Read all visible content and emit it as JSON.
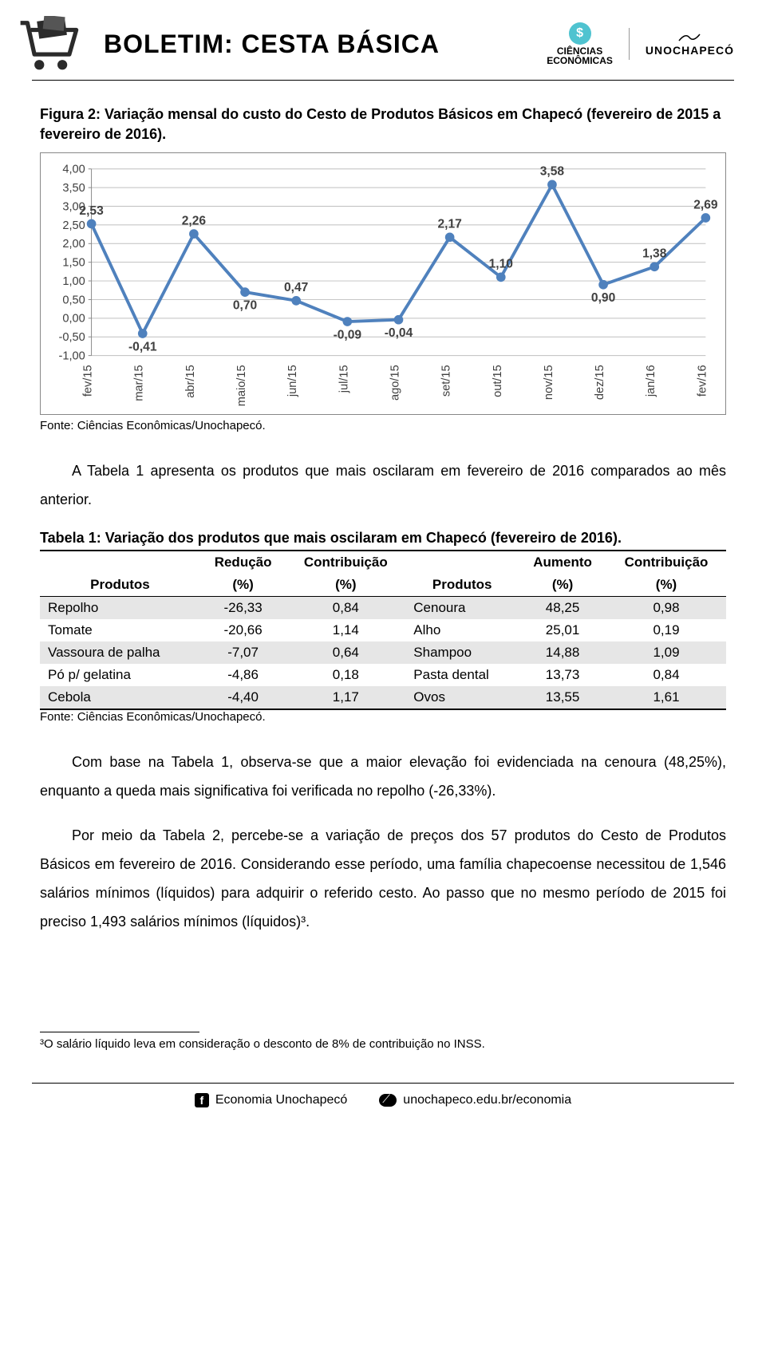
{
  "header": {
    "title": "BOLETIM: CESTA BÁSICA",
    "logo_ce_line1": "CIÊNCIAS",
    "logo_ce_line2": "ECONÔMICAS",
    "logo_ce_badge": "$",
    "logo_uno": "UNOCHAPECÓ"
  },
  "figure2": {
    "title": "Figura 2: Variação mensal do custo do Cesto de Produtos Básicos em Chapecó (fevereiro de 2015 a fevereiro de 2016).",
    "source": "Fonte: Ciências Econômicas/Unochapecó.",
    "chart": {
      "type": "line",
      "line_color": "#4f81bd",
      "line_width": 4,
      "marker_color": "#4f81bd",
      "marker_radius": 6,
      "grid_color": "#bfbfbf",
      "axis_color": "#888888",
      "label_color": "#404040",
      "label_fontsize": 16,
      "tick_fontsize": 15,
      "ylim": [
        -1.0,
        4.0
      ],
      "ytick_step": 0.5,
      "yticks": [
        "4,00",
        "3,50",
        "3,00",
        "2,50",
        "2,00",
        "1,50",
        "1,00",
        "0,50",
        "0,00",
        "-0,50",
        "-1,00"
      ],
      "categories": [
        "fev/15",
        "mar/15",
        "abr/15",
        "maio/15",
        "jun/15",
        "jul/15",
        "ago/15",
        "set/15",
        "out/15",
        "nov/15",
        "dez/15",
        "jan/16",
        "fev/16"
      ],
      "values": [
        2.53,
        -0.41,
        2.26,
        0.7,
        0.47,
        -0.09,
        -0.04,
        2.17,
        1.1,
        3.58,
        0.9,
        1.38,
        2.69
      ],
      "value_labels": [
        "2,53",
        "-0,41",
        "2,26",
        "0,70",
        "0,47",
        "-0,09",
        "-0,04",
        "2,17",
        "1,10",
        "3,58",
        "0,90",
        "1,38",
        "2,69"
      ],
      "label_pos": [
        "above",
        "below",
        "above",
        "below",
        "above",
        "below",
        "below",
        "above",
        "above",
        "above",
        "below",
        "above",
        "above"
      ]
    }
  },
  "para1": "A Tabela 1 apresenta os produtos que mais oscilaram em fevereiro de 2016 comparados ao mês anterior.",
  "table1": {
    "title": "Tabela 1: Variação dos produtos que mais oscilaram em Chapecó (fevereiro de 2016).",
    "headers_top": [
      "",
      "Redução",
      "Contribuição",
      "",
      "Aumento",
      "Contribuição"
    ],
    "headers_bot": [
      "Produtos",
      "(%)",
      "(%)",
      "Produtos",
      "(%)",
      "(%)"
    ],
    "rows": [
      [
        "Repolho",
        "-26,33",
        "0,84",
        "Cenoura",
        "48,25",
        "0,98"
      ],
      [
        "Tomate",
        "-20,66",
        "1,14",
        "Alho",
        "25,01",
        "0,19"
      ],
      [
        "Vassoura de palha",
        "-7,07",
        "0,64",
        "Shampoo",
        "14,88",
        "1,09"
      ],
      [
        "Pó p/ gelatina",
        "-4,86",
        "0,18",
        "Pasta dental",
        "13,73",
        "0,84"
      ],
      [
        "Cebola",
        "-4,40",
        "1,17",
        "Ovos",
        "13,55",
        "1,61"
      ]
    ],
    "source": "Fonte: Ciências Econômicas/Unochapecó."
  },
  "para2": "Com base na Tabela 1, observa-se que a maior elevação foi evidenciada na cenoura (48,25%), enquanto a queda mais significativa foi verificada no repolho (-26,33%).",
  "para3": "Por meio da Tabela 2, percebe-se a variação de preços dos 57 produtos do Cesto de Produtos Básicos em fevereiro de 2016. Considerando esse período, uma família chapecoense necessitou de 1,546 salários mínimos (líquidos) para adquirir o referido cesto. Ao passo que no mesmo período de 2015 foi preciso 1,493 salários mínimos (líquidos)³.",
  "footnote": "³O salário líquido leva em consideração o desconto de 8% de contribuição no INSS.",
  "footer": {
    "fb_label": "Economia Unochapecó",
    "web_label": "unochapeco.edu.br/economia"
  }
}
